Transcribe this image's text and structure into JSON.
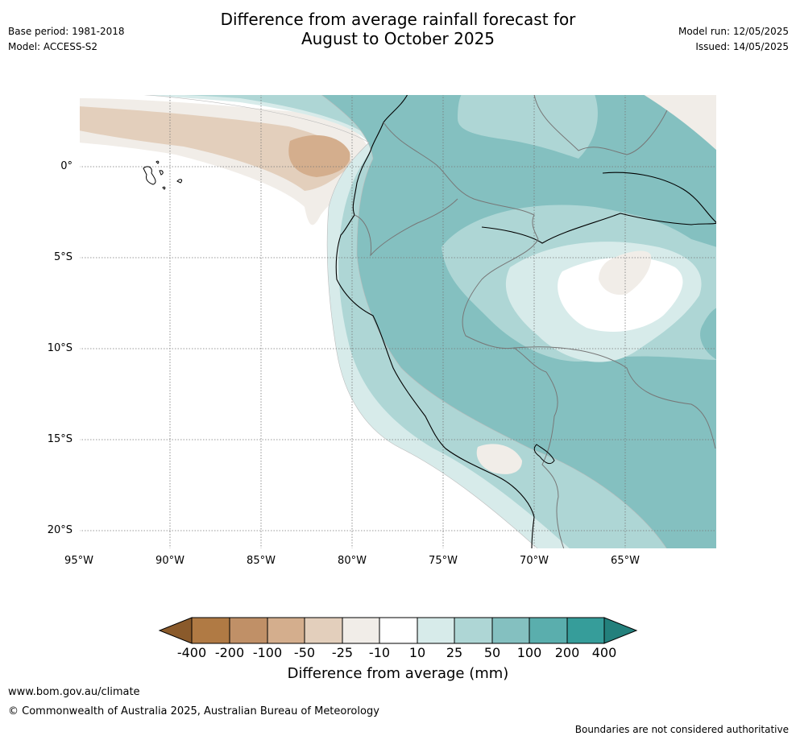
{
  "header": {
    "title_line1": "Difference from average rainfall forecast for",
    "title_line2": "August to October 2025",
    "base_period": "Base period: 1981-2018",
    "model": "Model: ACCESS-S2",
    "model_run": "Model run: 12/05/2025",
    "issued": "Issued: 14/05/2025"
  },
  "map": {
    "latitude_labels": [
      "0°",
      "5°S",
      "10°S",
      "15°S",
      "20°S"
    ],
    "longitude_labels": [
      "95°W",
      "90°W",
      "85°W",
      "80°W",
      "75°W",
      "70°W",
      "65°W"
    ],
    "extent": {
      "lon_min": -95,
      "lon_max": -60,
      "lat_min": -21,
      "lat_max": 4
    },
    "gridlines": true
  },
  "colorbar": {
    "tick_labels": [
      "-400",
      "-200",
      "-100",
      "-50",
      "-25",
      "-10",
      "10",
      "25",
      "50",
      "100",
      "200",
      "400"
    ],
    "colors": [
      "#8a5a2b",
      "#b07a44",
      "#c09067",
      "#d4ae8d",
      "#e3cfbc",
      "#f1ede8",
      "#ffffff",
      "#d7ebea",
      "#aed6d5",
      "#84c0c0",
      "#5aaead",
      "#369d9a",
      "#23807c"
    ],
    "label": "Difference from average (mm)"
  },
  "footer": {
    "website": "www.bom.gov.au/climate",
    "copyright": "© Commonwealth of Australia 2025, Australian Bureau of Meteorology",
    "disclaimer": "Boundaries are not considered authoritative"
  }
}
